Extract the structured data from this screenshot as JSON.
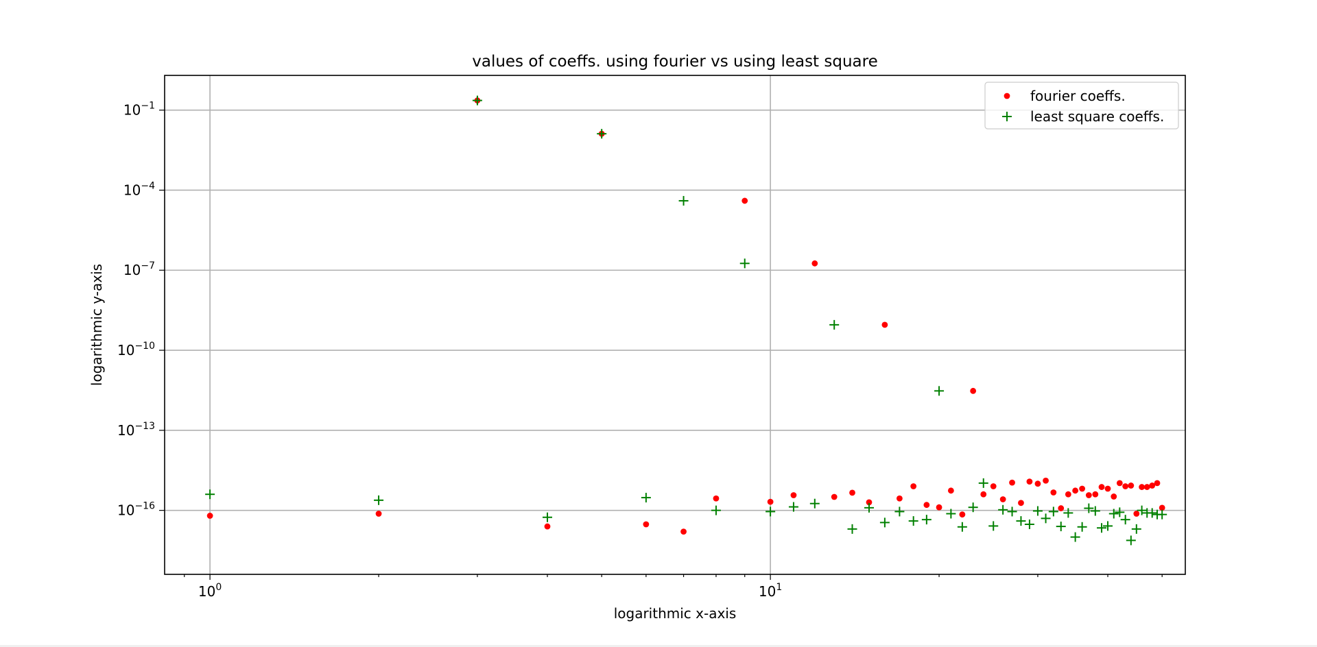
{
  "chart_data": {
    "type": "scatter",
    "title": "values of coeffs. using fourier vs using least square",
    "xlabel": "logarithmic x-axis",
    "ylabel": "logarithmic y-axis",
    "xscale": "log",
    "yscale": "log",
    "xlim": [
      0.83,
      55
    ],
    "ylim": [
      4e-19,
      2
    ],
    "x_major_ticks": [
      1,
      10
    ],
    "y_major_ticks": [
      0.1,
      0.0001,
      1e-07,
      1e-10,
      1e-13,
      1e-16
    ],
    "grid": true,
    "legend_placement": "top-right",
    "series": [
      {
        "name": "fourier coeffs.",
        "marker": "dot",
        "color": "#ff0000",
        "x": [
          1,
          2,
          3,
          4,
          5,
          6,
          7,
          8,
          9,
          10,
          11,
          12,
          13,
          14,
          15,
          16,
          17,
          18,
          19,
          20,
          21,
          22,
          23,
          24,
          25,
          26,
          27,
          28,
          29,
          30,
          31,
          32,
          33,
          34,
          35,
          36,
          37,
          38,
          39,
          40,
          41,
          42,
          43,
          44,
          45,
          46,
          47,
          48,
          49,
          50
        ],
        "y": [
          6.3e-17,
          7.5e-17,
          0.23,
          2.5e-17,
          0.013,
          3e-17,
          1.6e-17,
          2.8e-16,
          4e-05,
          2.1e-16,
          3.7e-16,
          1.8e-07,
          3.2e-16,
          4.6e-16,
          2e-16,
          9e-10,
          2.8e-16,
          8e-16,
          1.6e-16,
          1.3e-16,
          5.5e-16,
          7e-17,
          3e-12,
          4e-16,
          8e-16,
          2.6e-16,
          1.1e-15,
          1.9e-16,
          1.2e-15,
          1e-15,
          1.3e-15,
          4.7e-16,
          1.2e-16,
          4e-16,
          5.5e-16,
          6.5e-16,
          3.7e-16,
          4e-16,
          7.5e-16,
          6.5e-16,
          3.3e-16,
          1.05e-15,
          8e-16,
          8.5e-16,
          7.5e-17,
          7.5e-16,
          7.5e-16,
          8.5e-16,
          1.05e-15,
          1.25e-16
        ]
      },
      {
        "name": "least square coeffs.",
        "marker": "plus",
        "color": "#008000",
        "x": [
          1,
          2,
          3,
          4,
          5,
          6,
          7,
          8,
          9,
          10,
          11,
          12,
          13,
          14,
          15,
          16,
          17,
          18,
          19,
          20,
          21,
          22,
          23,
          24,
          25,
          26,
          27,
          28,
          29,
          30,
          31,
          32,
          33,
          34,
          35,
          36,
          37,
          38,
          39,
          40,
          41,
          42,
          43,
          44,
          45,
          46,
          47,
          48,
          49,
          50
        ],
        "y": [
          4e-16,
          2.4e-16,
          0.23,
          5.5e-17,
          0.013,
          3e-16,
          4e-05,
          1e-16,
          1.8e-07,
          9e-17,
          1.35e-16,
          1.8e-16,
          9e-10,
          2e-17,
          1.25e-16,
          3.5e-17,
          9e-17,
          4e-17,
          4.5e-17,
          3e-12,
          7.5e-17,
          2.4e-17,
          1.3e-16,
          1.05e-15,
          2.6e-17,
          1.05e-16,
          9e-17,
          4e-17,
          3e-17,
          9.5e-17,
          5e-17,
          9e-17,
          2.5e-17,
          8e-17,
          1e-17,
          2.4e-17,
          1.2e-16,
          9.5e-17,
          2.2e-17,
          2.6e-17,
          7.5e-17,
          8.5e-17,
          4.5e-17,
          7.5e-18,
          2e-17,
          1e-16,
          8e-17,
          8e-17,
          7e-17,
          7e-17
        ]
      }
    ]
  }
}
